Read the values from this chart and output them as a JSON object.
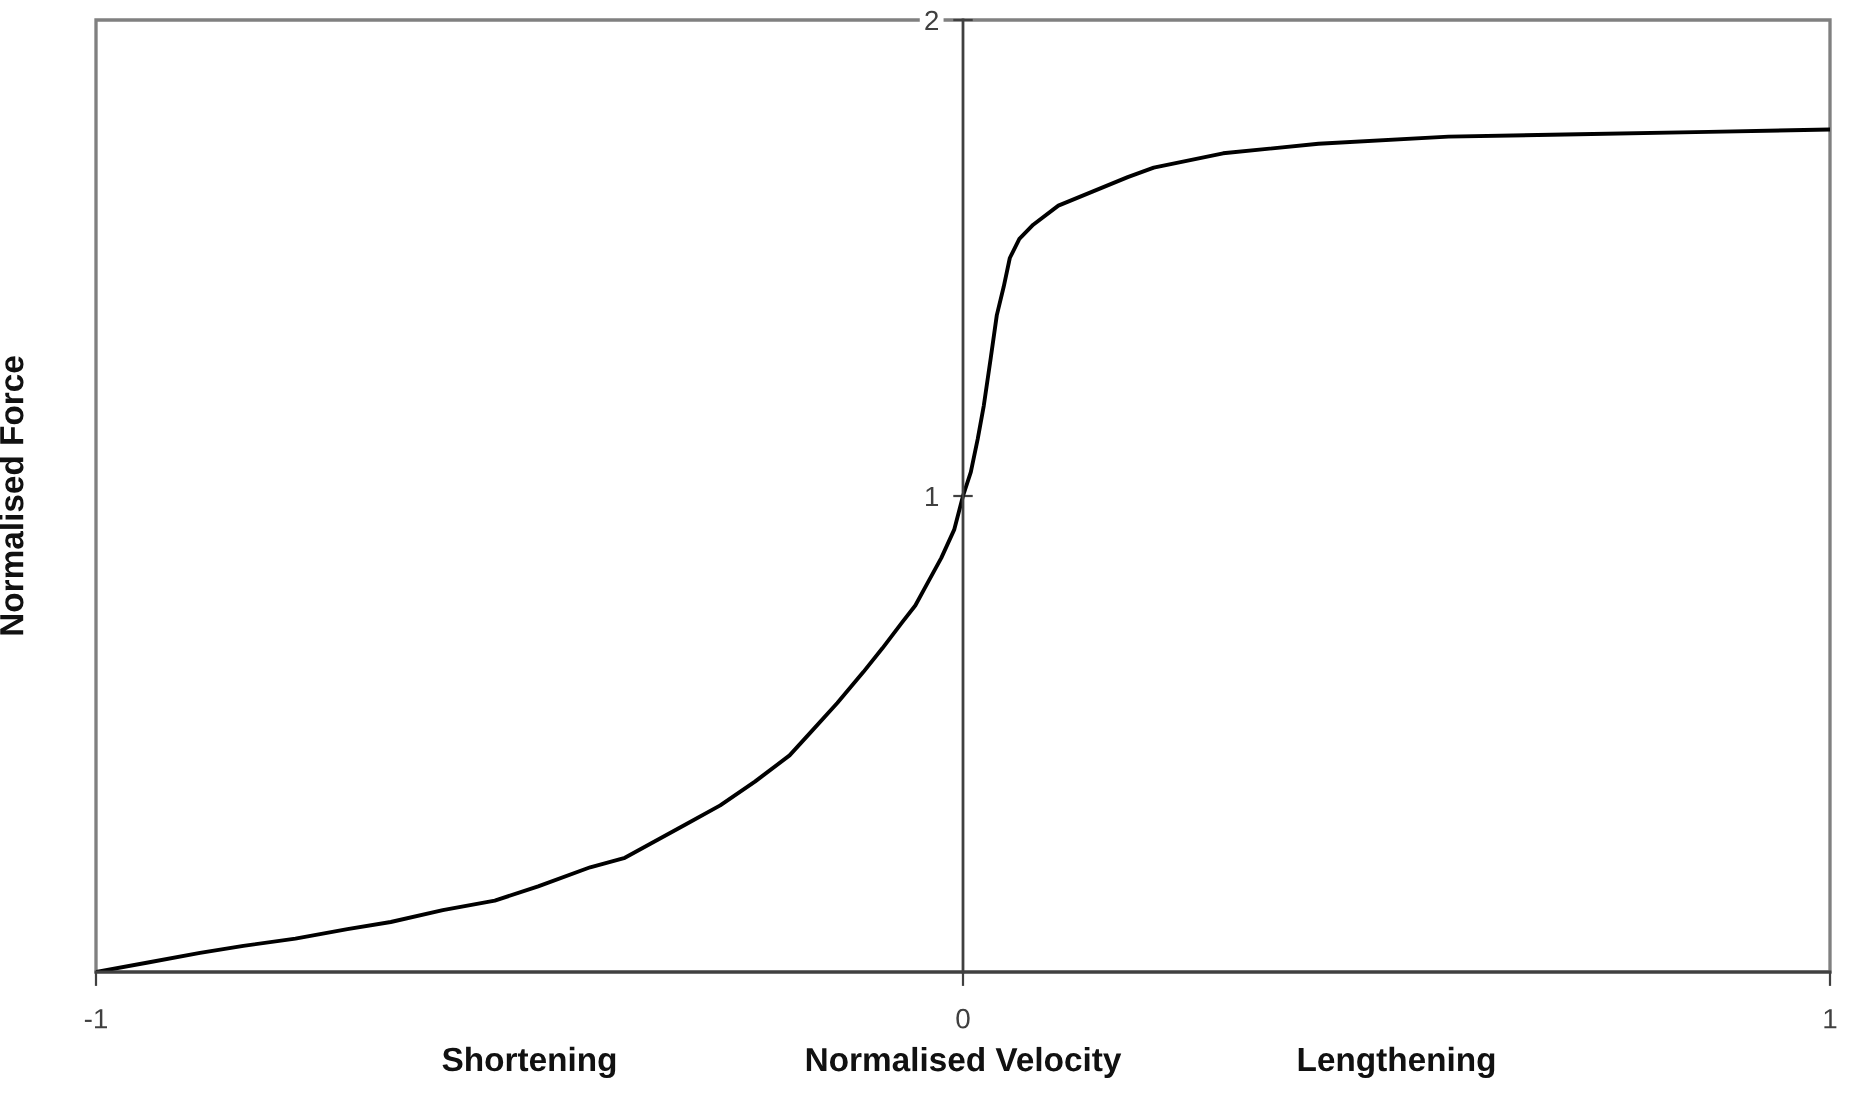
{
  "chart_data": {
    "type": "line",
    "xlabel": "Normalised Velocity",
    "ylabel": "Normalised Force",
    "annotations": [
      "Shortening",
      "Lengthening"
    ],
    "x": [
      -1,
      -0.94,
      -0.88,
      -0.83,
      -0.77,
      -0.71,
      -0.66,
      -0.6,
      -0.54,
      -0.49,
      -0.43,
      -0.39,
      -0.36,
      -0.32,
      -0.28,
      -0.24,
      -0.2,
      -0.175,
      -0.145,
      -0.115,
      -0.093,
      -0.07,
      -0.055,
      -0.04,
      -0.025,
      -0.01,
      0,
      0.009,
      0.017,
      0.024,
      0.032,
      0.039,
      0.047,
      0.054,
      0.065,
      0.081,
      0.11,
      0.15,
      0.19,
      0.22,
      0.3,
      0.41,
      0.56,
      0.71,
      0.86,
      1
    ],
    "series": [
      {
        "color": "#000000",
        "values": [
          0,
          0.02,
          0.04,
          0.055,
          0.07,
          0.09,
          0.105,
          0.13,
          0.15,
          0.18,
          0.22,
          0.24,
          0.27,
          0.31,
          0.35,
          0.4,
          0.455,
          0.505,
          0.565,
          0.63,
          0.68,
          0.735,
          0.77,
          0.82,
          0.87,
          0.93,
          1,
          1.05,
          1.12,
          1.19,
          1.29,
          1.38,
          1.44,
          1.5,
          1.54,
          1.57,
          1.61,
          1.64,
          1.67,
          1.69,
          1.72,
          1.74,
          1.755,
          1.76,
          1.765,
          1.77
        ]
      }
    ],
    "xlim": [
      -1,
      1
    ],
    "ylim": [
      0,
      2
    ],
    "xticks": [
      -1,
      0,
      1
    ],
    "yticks": [
      1,
      2
    ],
    "marker": "none",
    "line_style": "solid",
    "grid": false
  }
}
